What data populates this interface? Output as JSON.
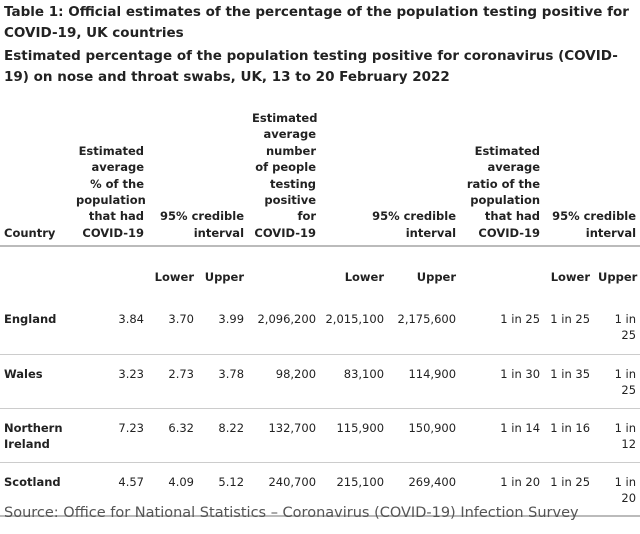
{
  "title": "Table 1: Official estimates of the percentage of the population testing positive for COVID-19, UK countries",
  "subtitle": "Estimated percentage of the population testing positive for coronavirus (COVID-19) on nose and throat swabs, UK, 13 to 20 February 2022",
  "headers": {
    "country": "Country",
    "pct": "Estimated average % of the population that had COVID-19",
    "ci1": "95% credible interval",
    "num": "Estimated average number of people testing positive for COVID-19",
    "ci2": "95% credible interval",
    "ratio": "Estimated average ratio of the population that had COVID-19",
    "ci3": "95% credible interval"
  },
  "subheaders": {
    "lower": "Lower",
    "upper": "Upper"
  },
  "rows": [
    {
      "country": "England",
      "pct": "3.84",
      "pct_lower": "3.70",
      "pct_upper": "3.99",
      "num": "2,096,200",
      "num_lower": "2,015,100",
      "num_upper": "2,175,600",
      "ratio": "1 in 25",
      "ratio_lower": "1 in 25",
      "ratio_upper": "1 in 25"
    },
    {
      "country": "Wales",
      "pct": "3.23",
      "pct_lower": "2.73",
      "pct_upper": "3.78",
      "num": "98,200",
      "num_lower": "83,100",
      "num_upper": "114,900",
      "ratio": "1 in 30",
      "ratio_lower": "1 in 35",
      "ratio_upper": "1 in 25"
    },
    {
      "country": "Northern Ireland",
      "pct": "7.23",
      "pct_lower": "6.32",
      "pct_upper": "8.22",
      "num": "132,700",
      "num_lower": "115,900",
      "num_upper": "150,900",
      "ratio": "1 in 14",
      "ratio_lower": "1 in 16",
      "ratio_upper": "1 in 12"
    },
    {
      "country": "Scotland",
      "pct": "4.57",
      "pct_lower": "4.09",
      "pct_upper": "5.12",
      "num": "240,700",
      "num_lower": "215,100",
      "num_upper": "269,400",
      "ratio": "1 in 20",
      "ratio_lower": "1 in 25",
      "ratio_upper": "1 in 20"
    }
  ],
  "source": "Source: Office for National Statistics – Coronavirus (COVID-19) Infection Survey"
}
